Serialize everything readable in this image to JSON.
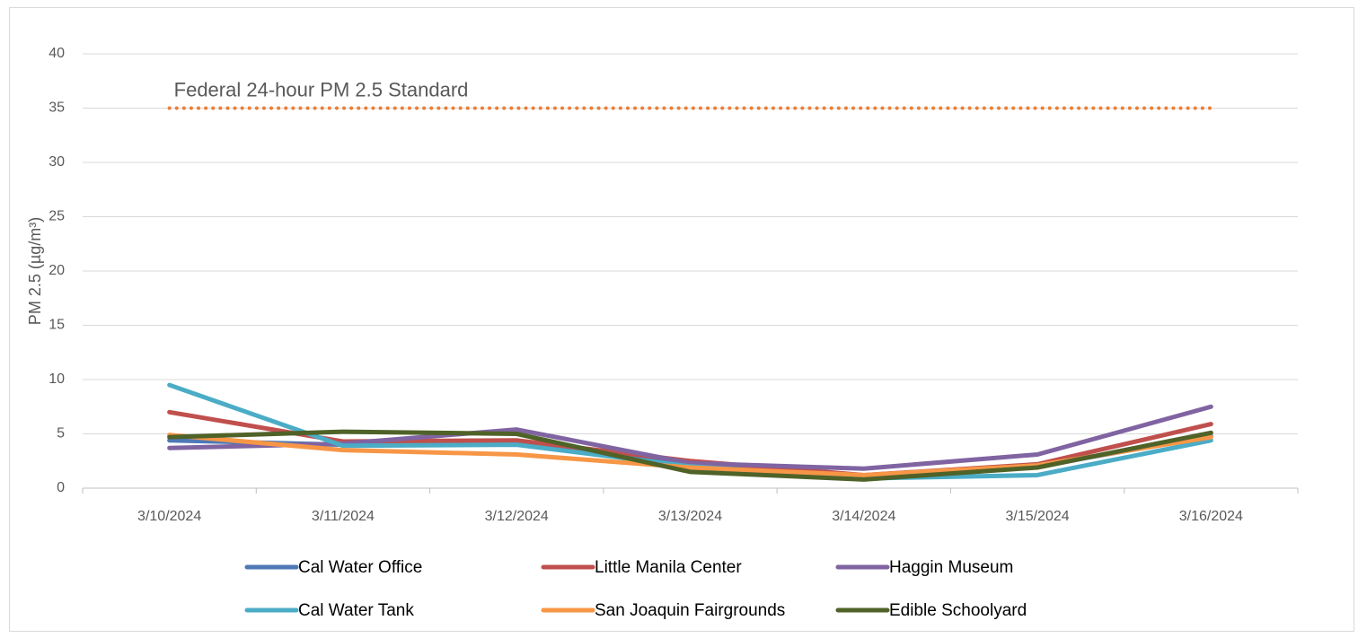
{
  "chart_data": {
    "type": "line",
    "y_axis_label": "PM 2.5 (µg/m³)",
    "categories": [
      "3/10/2024",
      "3/11/2024",
      "3/12/2024",
      "3/13/2024",
      "3/14/2024",
      "3/15/2024",
      "3/16/2024"
    ],
    "series": [
      {
        "name": "Cal Water Office",
        "color": "#4e79b5",
        "values": [
          4.4,
          4.0,
          4.3,
          2.2,
          1.0,
          2.0,
          4.8
        ]
      },
      {
        "name": "Little Manila Center",
        "color": "#c0504d",
        "values": [
          7.0,
          4.3,
          4.4,
          2.5,
          1.2,
          2.2,
          5.9
        ]
      },
      {
        "name": "Haggin Museum",
        "color": "#8064a2",
        "values": [
          3.7,
          4.1,
          5.4,
          2.3,
          1.8,
          3.1,
          7.5
        ]
      },
      {
        "name": "Cal Water Tank",
        "color": "#4bacc6",
        "values": [
          9.5,
          3.9,
          4.0,
          2.0,
          0.9,
          1.2,
          4.4
        ]
      },
      {
        "name": "San Joaquin Fairgrounds",
        "color": "#f79646",
        "values": [
          4.9,
          3.5,
          3.1,
          1.9,
          1.2,
          2.1,
          4.7
        ]
      },
      {
        "name": "Edible Schoolyard",
        "color": "#4f6228",
        "values": [
          4.7,
          5.2,
          5.0,
          1.5,
          0.8,
          1.9,
          5.1
        ]
      }
    ],
    "reference_line": {
      "label": "Federal 24-hour PM 2.5 Standard",
      "value": 35,
      "color": "#ed7d31"
    },
    "ylim": [
      0,
      40
    ],
    "yticks": [
      0,
      5,
      10,
      15,
      20,
      25,
      30,
      35,
      40
    ],
    "grid": true,
    "legend": "bottom"
  }
}
